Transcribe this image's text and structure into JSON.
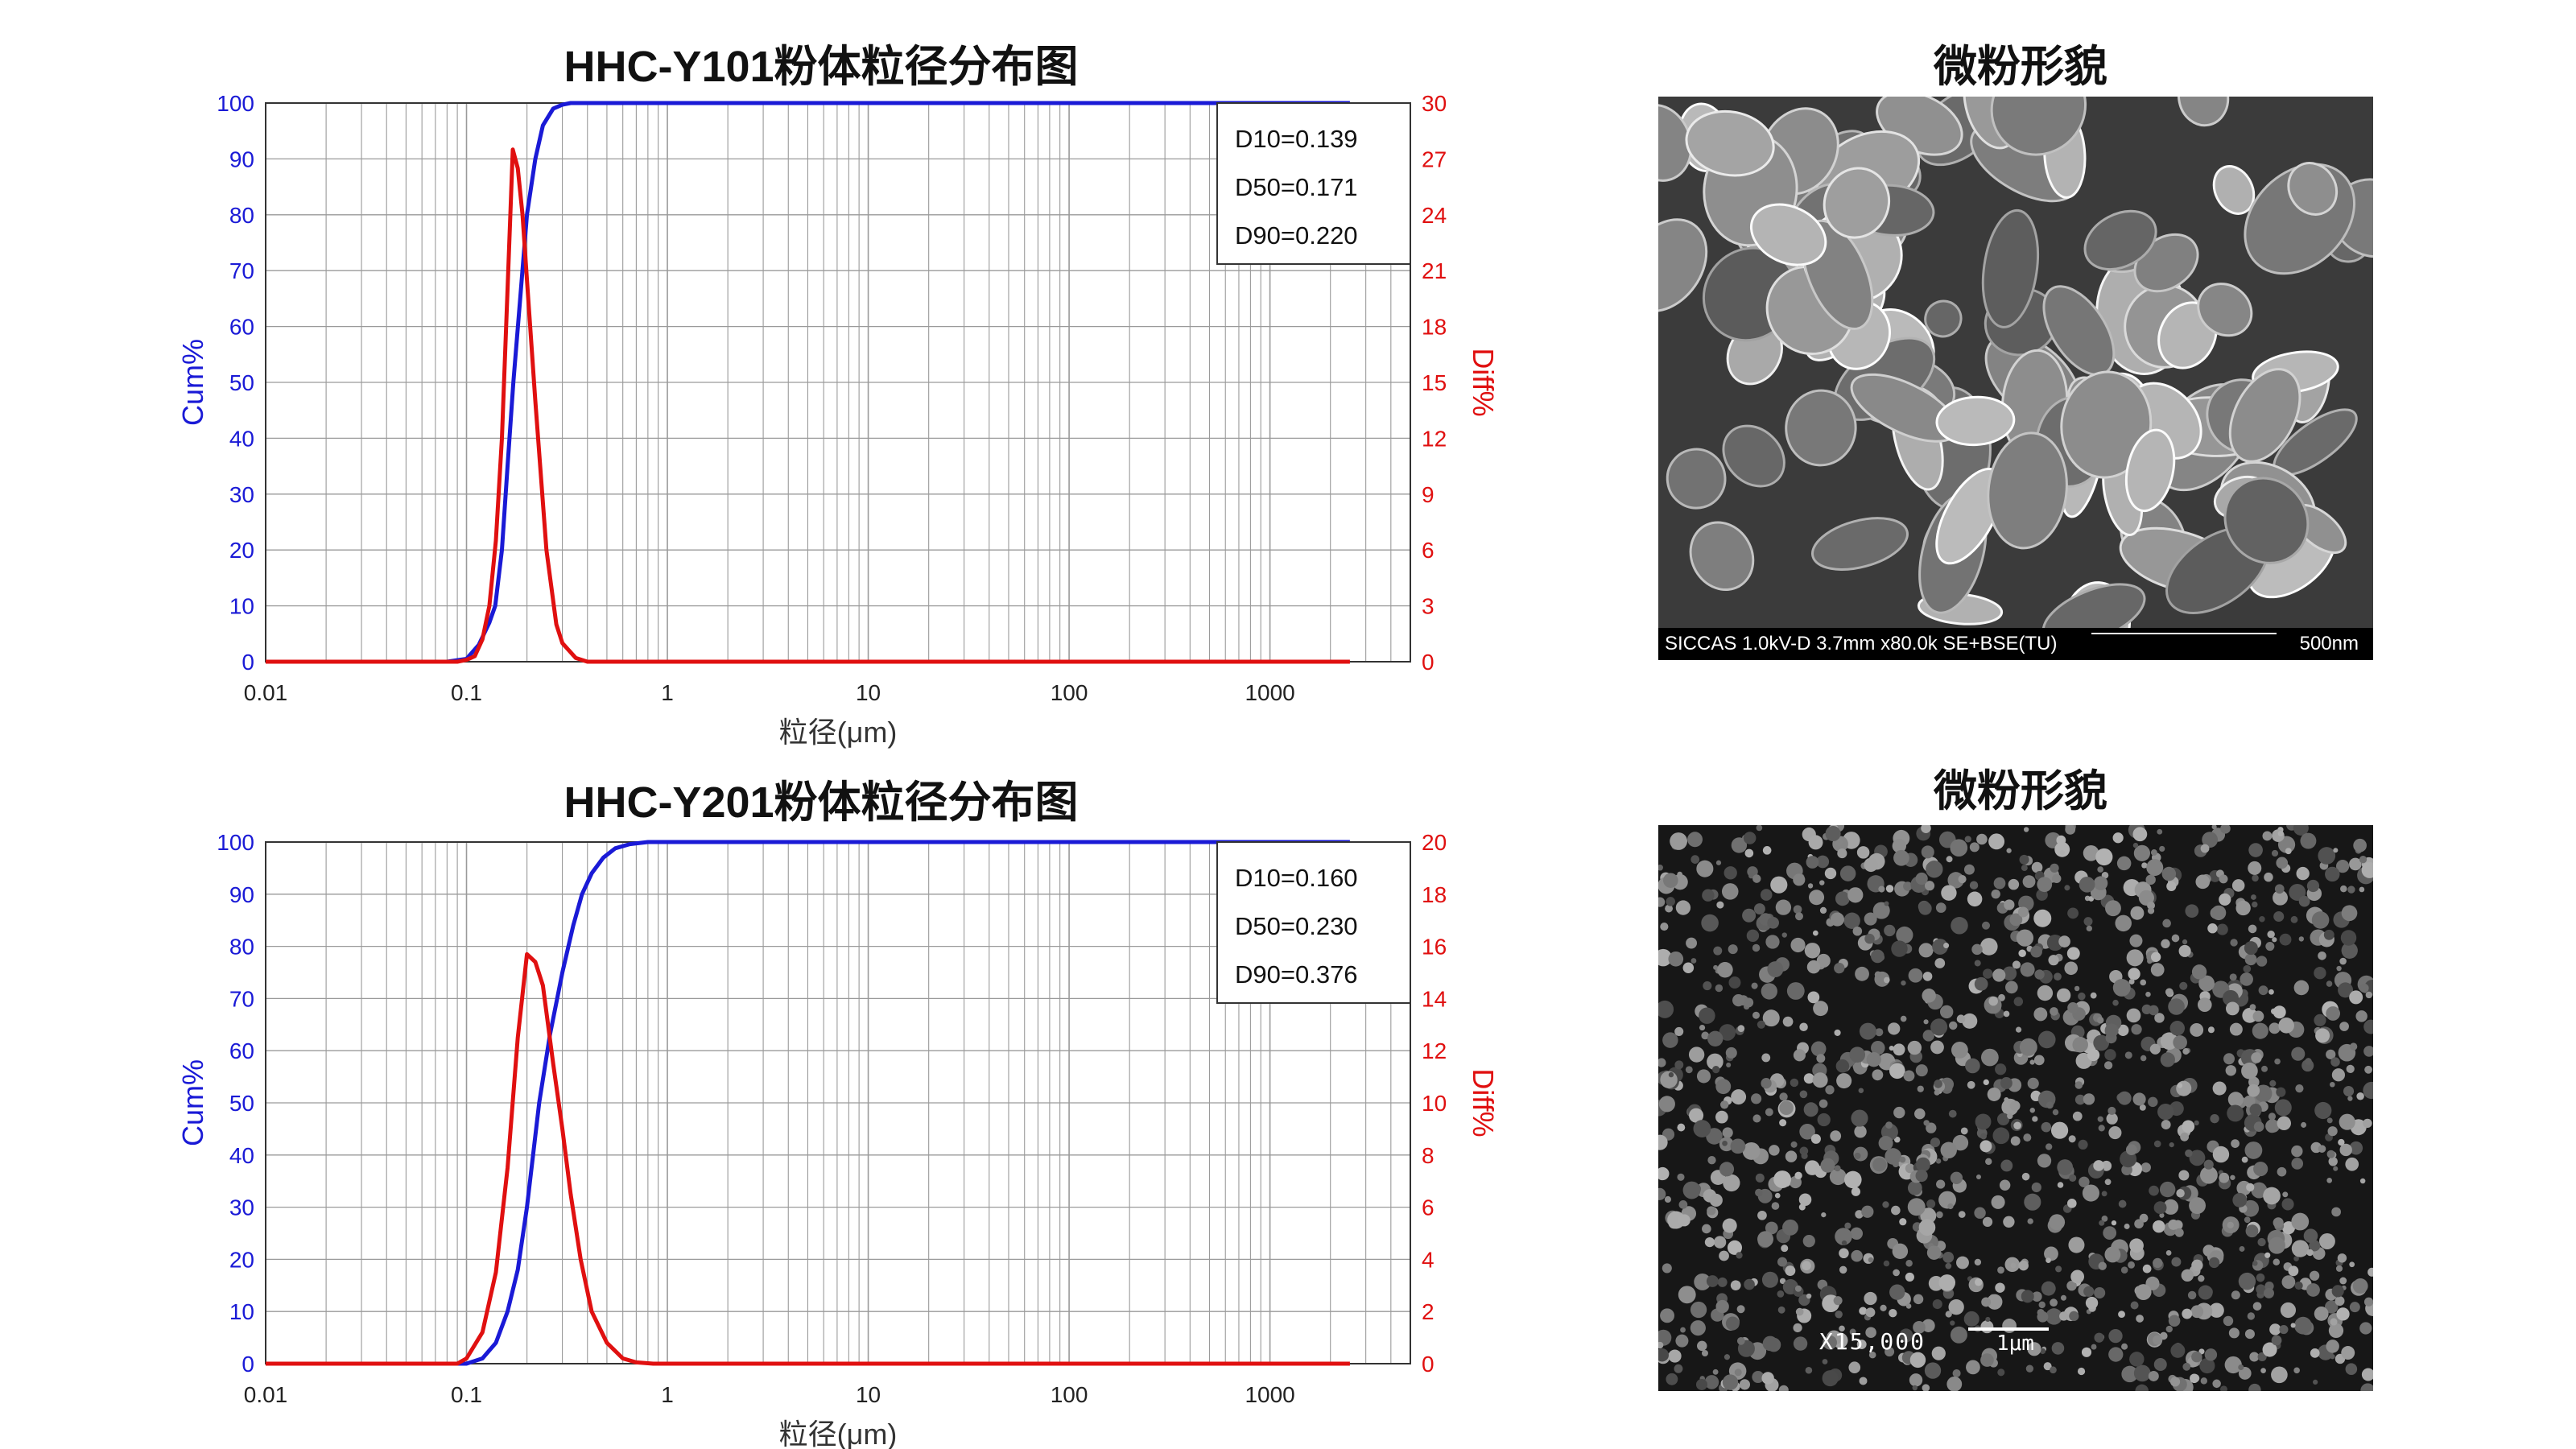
{
  "charts": [
    {
      "title": "HHC-Y101粉体粒径分布图",
      "stats": [
        "D10=0.139",
        "D50=0.171",
        "D90=0.220"
      ]
    },
    {
      "title": "HHC-Y201粉体粒径分布图",
      "stats": [
        "D10=0.160",
        "D50=0.230",
        "D90=0.376"
      ]
    }
  ],
  "sem": [
    {
      "title": "微粉形貌",
      "info": "SICCAS 1.0kV-D 3.7mm x80.0k SE+BSE(TU)",
      "scale": "500nm"
    },
    {
      "title": "微粉形貌",
      "magnification": "X15,000",
      "scale": "1μm"
    }
  ],
  "colors": {
    "cum": "#1a1ad6",
    "diff": "#e01010",
    "grid": "#9a9a9a"
  },
  "chart_data": [
    {
      "type": "line",
      "title": "HHC-Y101粉体粒径分布图",
      "xlabel": "粒径(μm)",
      "ylabel": "Cum%",
      "y2label": "Diff%",
      "xscale": "log",
      "xlim": [
        0.01,
        5000
      ],
      "xticks": [
        0.01,
        0.1,
        1,
        10,
        100,
        1000
      ],
      "xtick_labels": [
        "0.01",
        "0.1",
        "1",
        "10",
        "100",
        "1000"
      ],
      "ylim": [
        0,
        100
      ],
      "y2lim": [
        0,
        30
      ],
      "yticks": [
        0,
        10,
        20,
        30,
        40,
        50,
        60,
        70,
        80,
        90,
        100
      ],
      "y2ticks": [
        0,
        3,
        6,
        9,
        12,
        15,
        18,
        21,
        24,
        27,
        30
      ],
      "grid": true,
      "legend_box": "top-right",
      "annotations": [
        "D10=0.139",
        "D50=0.171",
        "D90=0.220"
      ],
      "series": [
        {
          "axis": "left",
          "color": "#1a1ad6",
          "x": [
            0.01,
            0.08,
            0.1,
            0.115,
            0.13,
            0.139,
            0.15,
            0.16,
            0.171,
            0.185,
            0.2,
            0.22,
            0.24,
            0.27,
            0.3,
            0.33,
            2500
          ],
          "y": [
            0,
            0,
            0.5,
            3,
            7,
            10,
            20,
            35,
            50,
            65,
            80,
            90,
            96,
            99,
            99.7,
            100,
            100
          ]
        },
        {
          "axis": "right",
          "color": "#e01010",
          "x": [
            0.01,
            0.09,
            0.1,
            0.11,
            0.12,
            0.13,
            0.14,
            0.15,
            0.16,
            0.17,
            0.18,
            0.19,
            0.2,
            0.22,
            0.25,
            0.28,
            0.3,
            0.35,
            0.4,
            2500
          ],
          "y": [
            0,
            0,
            0.1,
            0.3,
            1.2,
            3,
            6.5,
            12,
            20,
            27.5,
            26.5,
            24,
            20.5,
            14,
            6,
            2,
            1,
            0.2,
            0,
            0
          ]
        }
      ]
    },
    {
      "type": "line",
      "title": "HHC-Y201粉体粒径分布图",
      "xlabel": "粒径(μm)",
      "ylabel": "Cum%",
      "y2label": "Diff%",
      "xscale": "log",
      "xlim": [
        0.01,
        5000
      ],
      "xticks": [
        0.01,
        0.1,
        1,
        10,
        100,
        1000
      ],
      "xtick_labels": [
        "0.01",
        "0.1",
        "1",
        "10",
        "100",
        "1000"
      ],
      "ylim": [
        0,
        100
      ],
      "y2lim": [
        0,
        20
      ],
      "yticks": [
        0,
        10,
        20,
        30,
        40,
        50,
        60,
        70,
        80,
        90,
        100
      ],
      "y2ticks": [
        0,
        2,
        4,
        6,
        8,
        10,
        12,
        14,
        16,
        18,
        20
      ],
      "grid": true,
      "legend_box": "top-right",
      "annotations": [
        "D10=0.160",
        "D50=0.230",
        "D90=0.376"
      ],
      "series": [
        {
          "axis": "left",
          "color": "#1a1ad6",
          "x": [
            0.01,
            0.1,
            0.12,
            0.14,
            0.16,
            0.18,
            0.2,
            0.23,
            0.26,
            0.3,
            0.34,
            0.376,
            0.42,
            0.48,
            0.55,
            0.65,
            0.8,
            2500
          ],
          "y": [
            0,
            0,
            1,
            4,
            10,
            18,
            30,
            50,
            63,
            75,
            84,
            90,
            94,
            97,
            98.8,
            99.6,
            100,
            100
          ]
        },
        {
          "axis": "right",
          "color": "#e01010",
          "x": [
            0.01,
            0.09,
            0.1,
            0.12,
            0.14,
            0.16,
            0.18,
            0.2,
            0.22,
            0.24,
            0.27,
            0.3,
            0.33,
            0.37,
            0.42,
            0.5,
            0.6,
            0.7,
            0.85,
            2500
          ],
          "y": [
            0,
            0,
            0.2,
            1.2,
            3.5,
            7.5,
            12.5,
            15.7,
            15.4,
            14.5,
            11.5,
            9,
            6.5,
            4,
            2,
            0.8,
            0.2,
            0.05,
            0,
            0
          ]
        }
      ]
    }
  ]
}
